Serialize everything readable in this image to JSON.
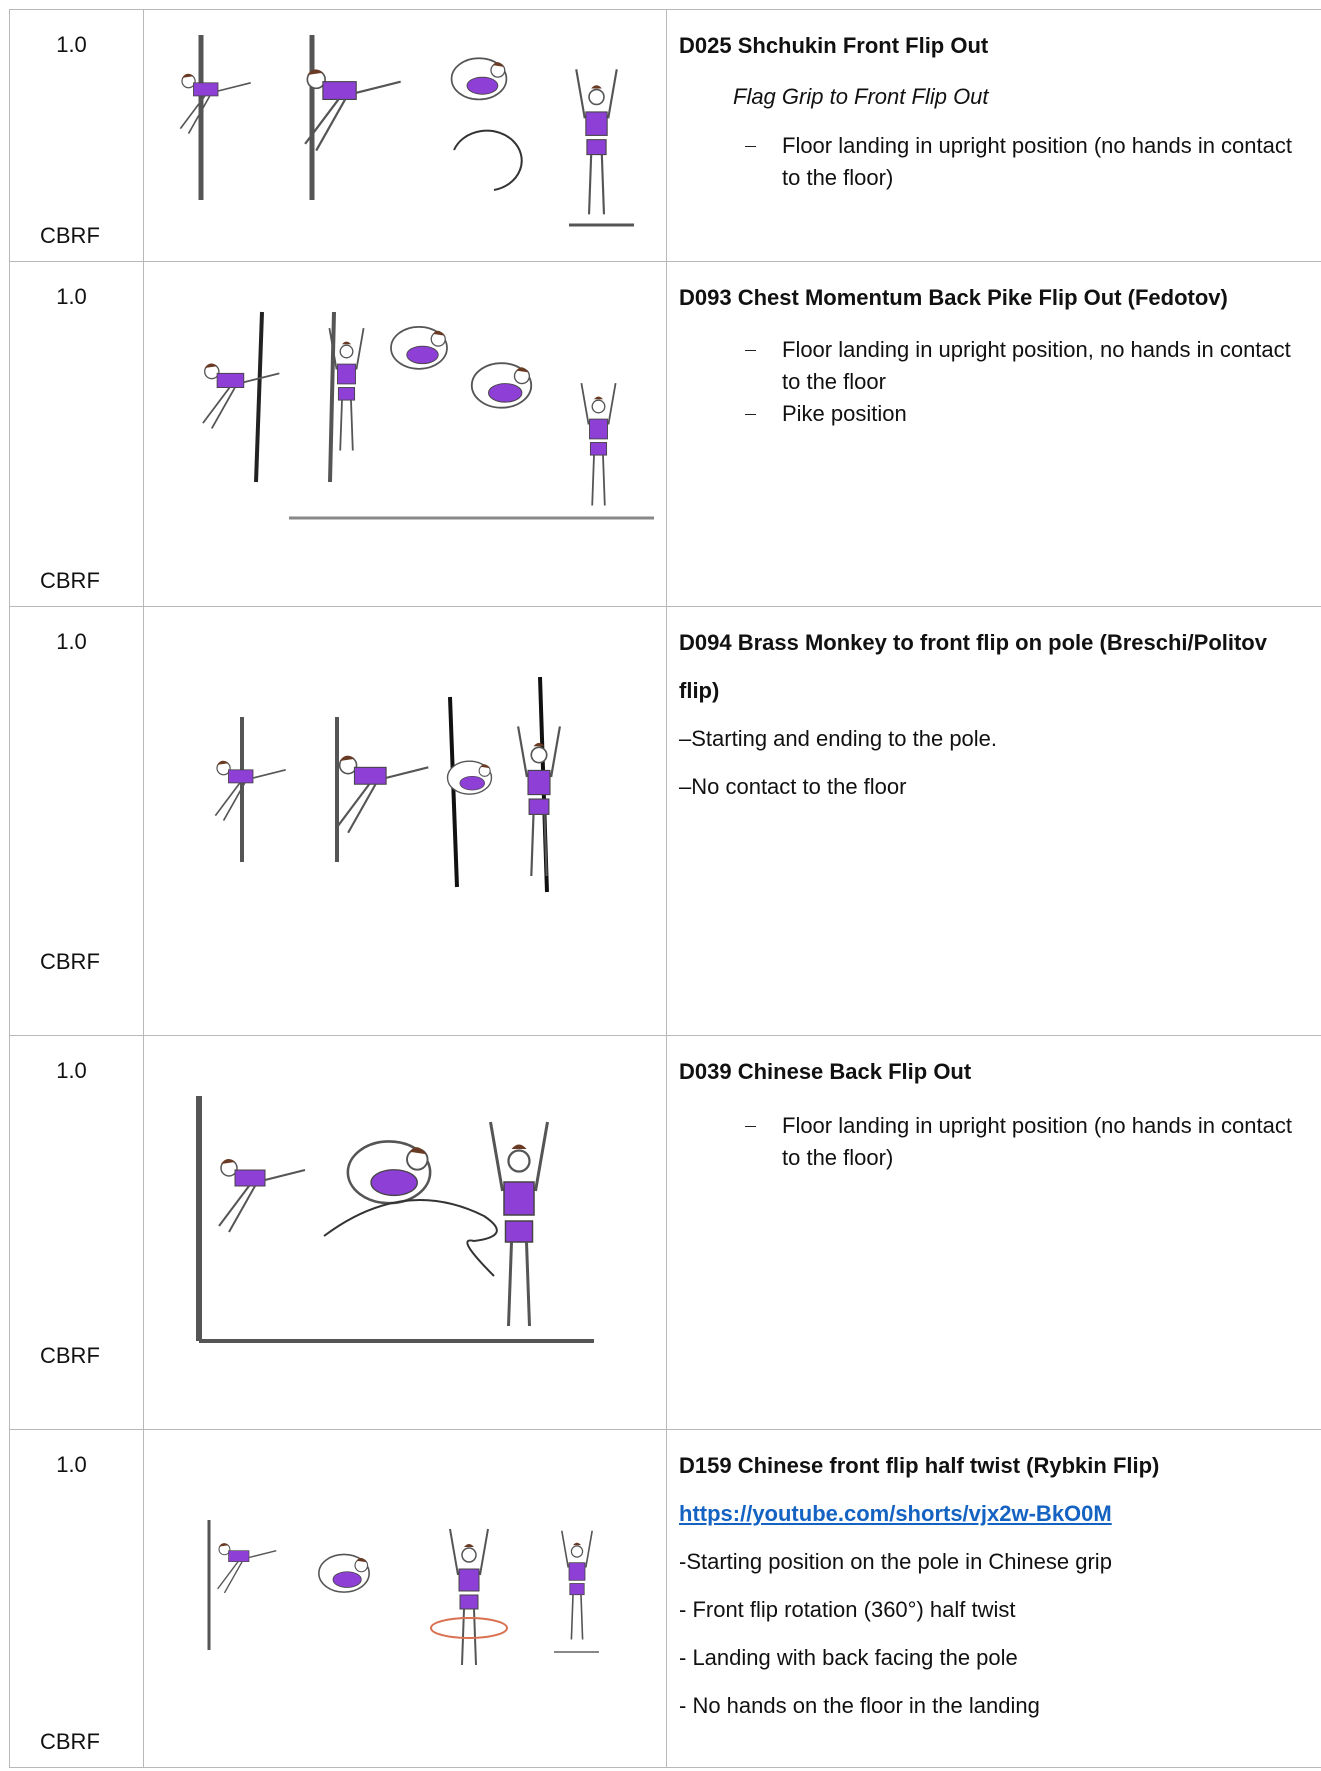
{
  "rows": [
    {
      "value": "1.0",
      "code": "CBRF",
      "title": "D025 Shchukin Front Flip Out",
      "subtitle": "Flag Grip to Front Flip Out",
      "bullets": [
        "Floor landing in upright position (no hands in contact to the floor)"
      ]
    },
    {
      "value": "1.0",
      "code": "CBRF",
      "title": "D093 Chest Momentum Back Pike Flip Out (Fedotov)",
      "bullets": [
        "Floor landing in upright position, no hands in contact to the floor",
        "Pike position"
      ]
    },
    {
      "value": "1.0",
      "code": "CBRF",
      "title": "D094 Brass Monkey to front flip on pole (Breschi/Politov flip)",
      "lines": [
        "–Starting and ending to the pole.",
        "–No contact to the floor"
      ]
    },
    {
      "value": "1.0",
      "code": "CBRF",
      "title": "D039 Chinese Back Flip Out",
      "bullets": [
        "Floor landing in upright position (no hands in contact to the floor)"
      ]
    },
    {
      "value": "1.0",
      "code": "CBRF",
      "title": "D159 Chinese front flip half twist (Rybkin Flip)",
      "link": "https://youtube.com/shorts/vjx2w-BkO0M",
      "lines": [
        "-Starting position on the pole in Chinese grip",
        "- Front flip rotation (360°) half twist",
        "- Landing with back facing the pole",
        "- No hands on the floor in the landing"
      ]
    }
  ]
}
